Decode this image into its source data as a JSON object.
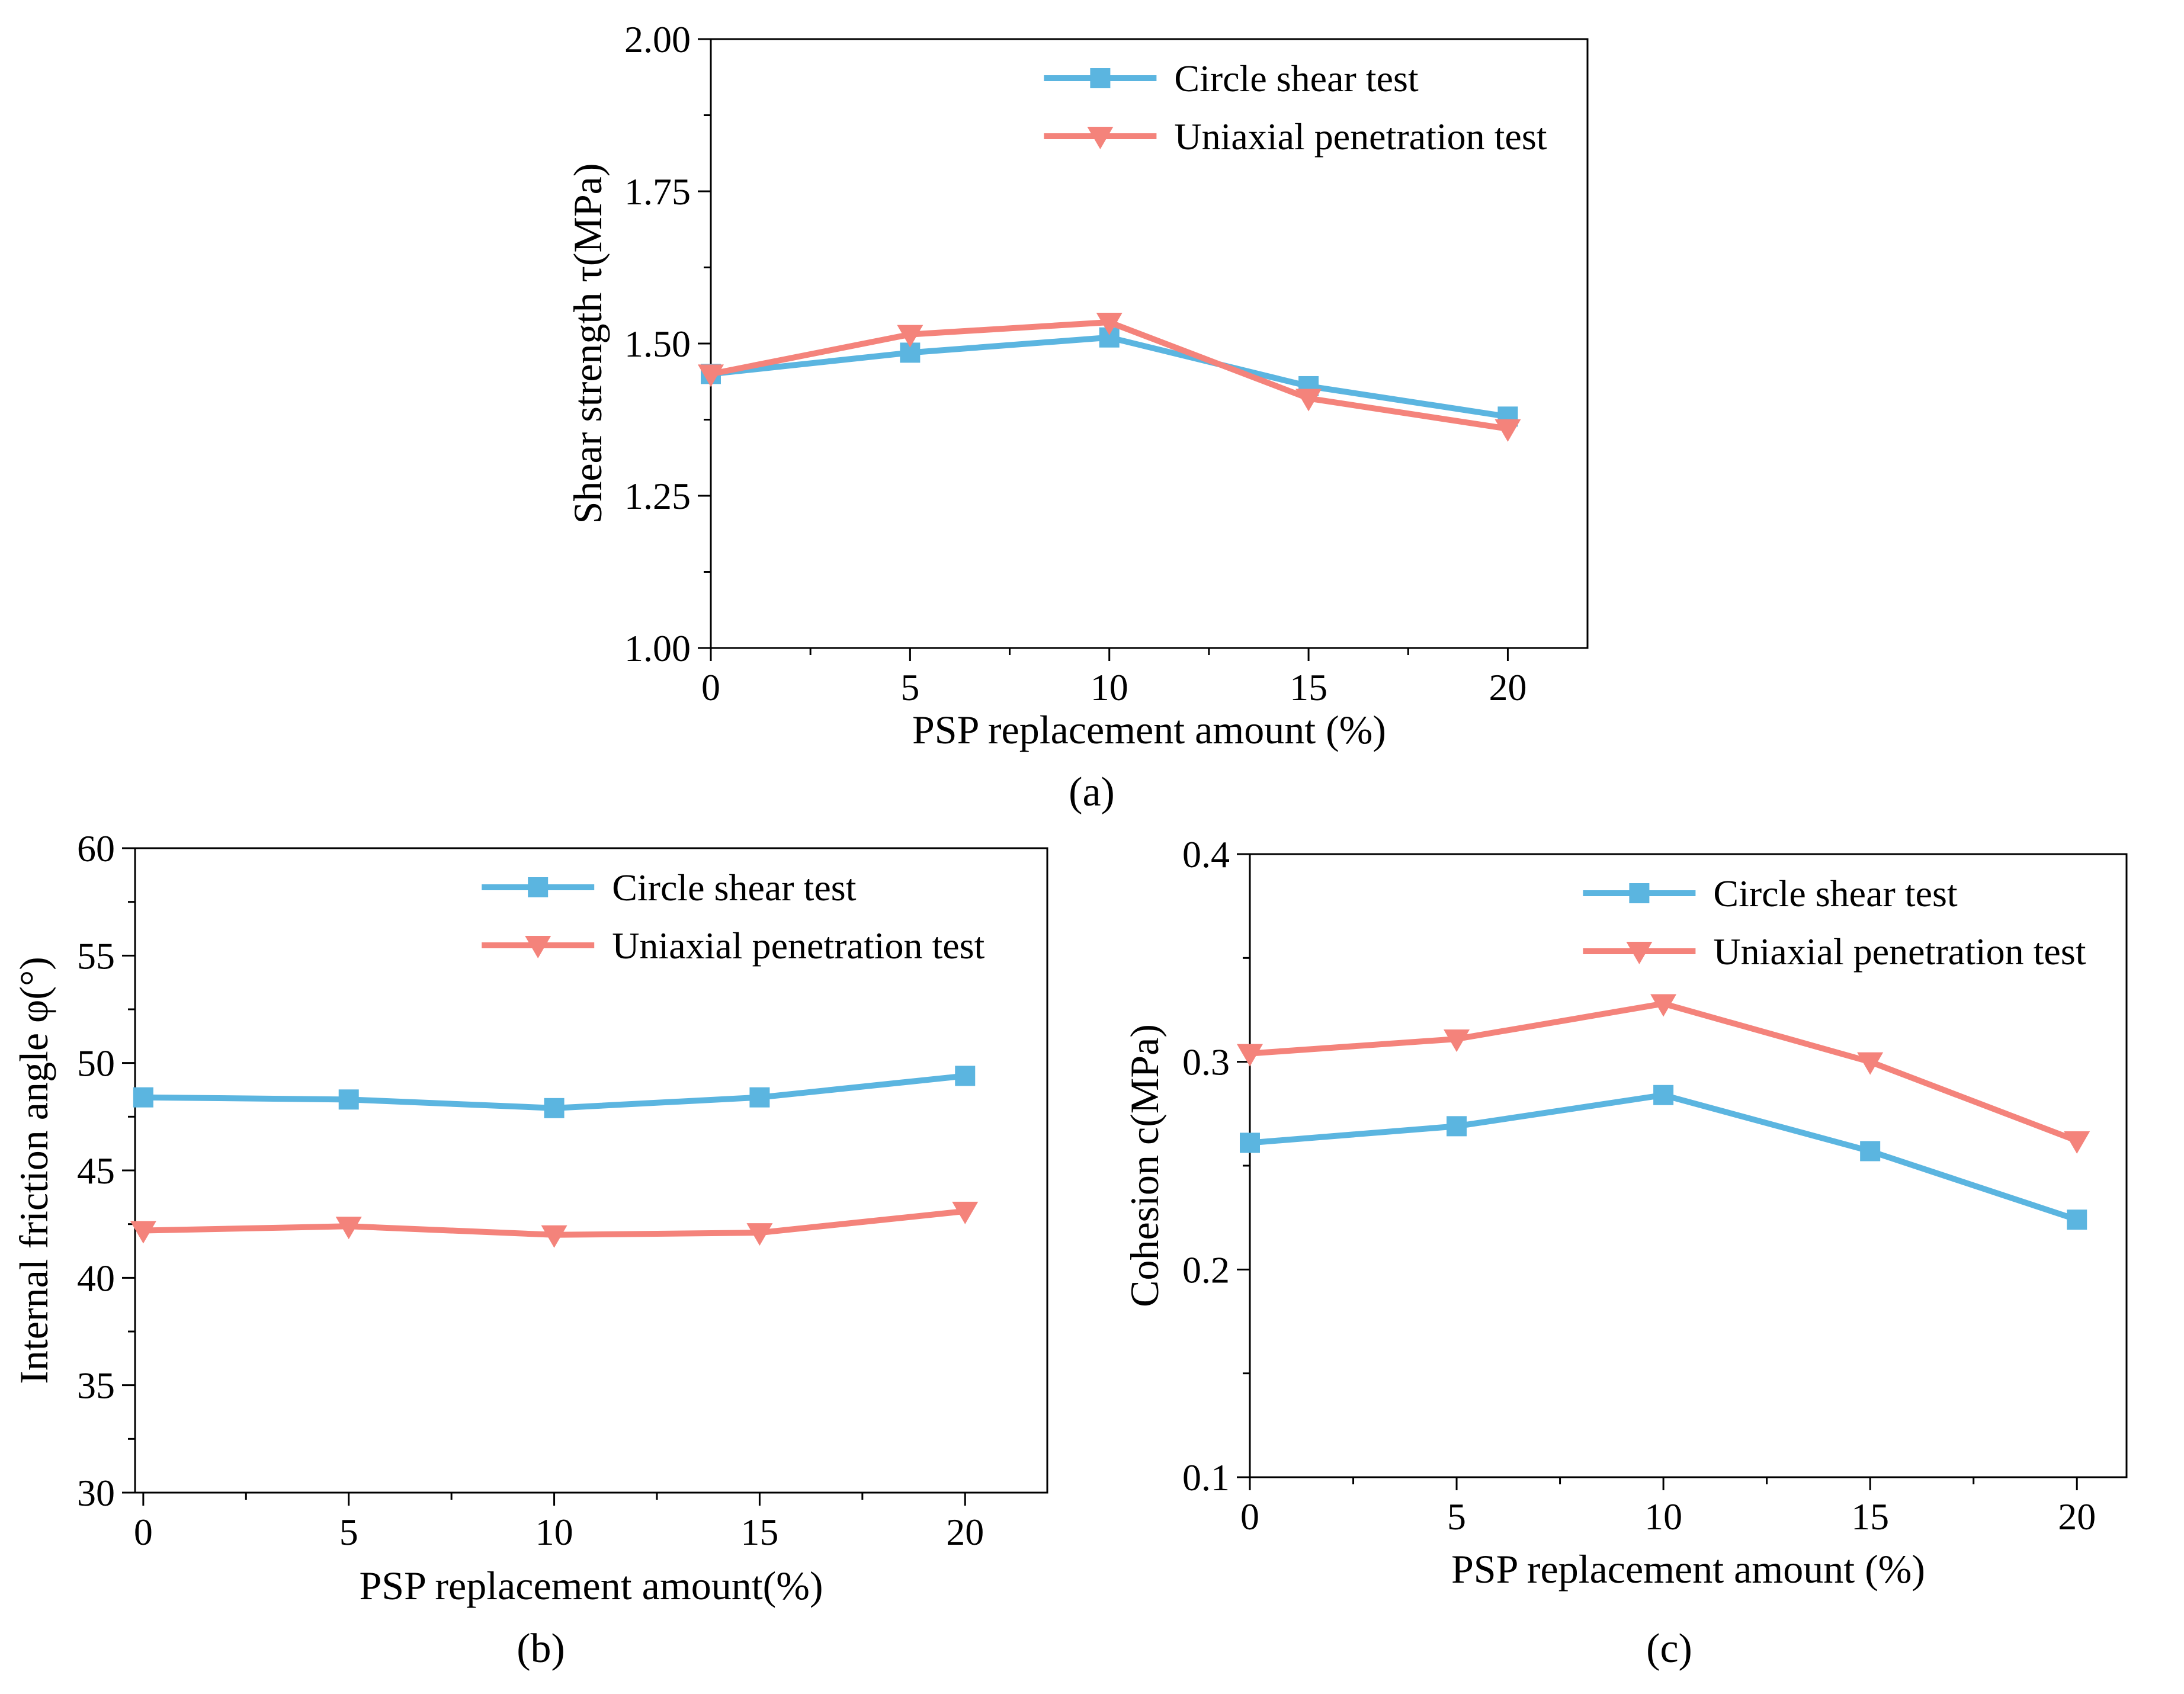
{
  "figure": {
    "panel_labels": [
      "(a)",
      "(b)",
      "(c)"
    ]
  },
  "chart_data": [
    {
      "panel": "(a)",
      "type": "line",
      "xlabel": "PSP replacement amount  (%)",
      "ylabel": "Shear strength τ(MPa)",
      "x": [
        0,
        5,
        10,
        15,
        20
      ],
      "xlim": [
        0,
        22
      ],
      "ylim": [
        1.0,
        2.0
      ],
      "xticks": [
        "0",
        "5",
        "10",
        "15",
        "20"
      ],
      "yticks": [
        "1.00",
        "1.25",
        "1.50",
        "1.75",
        "2.00"
      ],
      "grid": false,
      "legend_position": "top-right",
      "series": [
        {
          "name": "Circle shear test",
          "marker": "square",
          "color": "#5bb5e0",
          "values": [
            1.45,
            1.485,
            1.51,
            1.43,
            1.38
          ]
        },
        {
          "name": "Uniaxial penetration test",
          "marker": "triangle-down",
          "color": "#f4837b",
          "values": [
            1.45,
            1.515,
            1.535,
            1.41,
            1.36
          ]
        }
      ]
    },
    {
      "panel": "(b)",
      "type": "line",
      "xlabel": "PSP replacement amount(%)",
      "ylabel": "Internal friction angle φ(°)",
      "x": [
        0,
        5,
        10,
        15,
        20
      ],
      "xlim": [
        -0.2,
        22
      ],
      "ylim": [
        30,
        60
      ],
      "xticks": [
        "0",
        "5",
        "10",
        "15",
        "20"
      ],
      "yticks": [
        "30",
        "35",
        "40",
        "45",
        "50",
        "55",
        "60"
      ],
      "grid": false,
      "legend_position": "top-right",
      "series": [
        {
          "name": "Circle shear test",
          "marker": "square",
          "color": "#5bb5e0",
          "values": [
            48.4,
            48.3,
            47.9,
            48.4,
            49.4
          ]
        },
        {
          "name": "Uniaxial penetration test",
          "marker": "triangle-down",
          "color": "#f4837b",
          "values": [
            42.2,
            42.4,
            42.0,
            42.1,
            43.1
          ]
        }
      ]
    },
    {
      "panel": "(c)",
      "type": "line",
      "xlabel": "PSP replacement amount  (%)",
      "ylabel": "Cohesion  c(MPa)",
      "x": [
        0,
        5,
        10,
        15,
        20
      ],
      "xlim": [
        0,
        21.2
      ],
      "ylim": [
        0.1,
        0.4
      ],
      "xticks": [
        "0",
        "5",
        "10",
        "15",
        "20"
      ],
      "yticks": [
        "0.1",
        "0.2",
        "0.3",
        "0.4"
      ],
      "grid": false,
      "legend_position": "top-right",
      "series": [
        {
          "name": "Circle shear test",
          "marker": "square",
          "color": "#5bb5e0",
          "values": [
            0.261,
            0.269,
            0.284,
            0.257,
            0.224
          ]
        },
        {
          "name": "Uniaxial penetration test",
          "marker": "triangle-down",
          "color": "#f4837b",
          "values": [
            0.304,
            0.311,
            0.328,
            0.3,
            0.262
          ]
        }
      ]
    }
  ]
}
